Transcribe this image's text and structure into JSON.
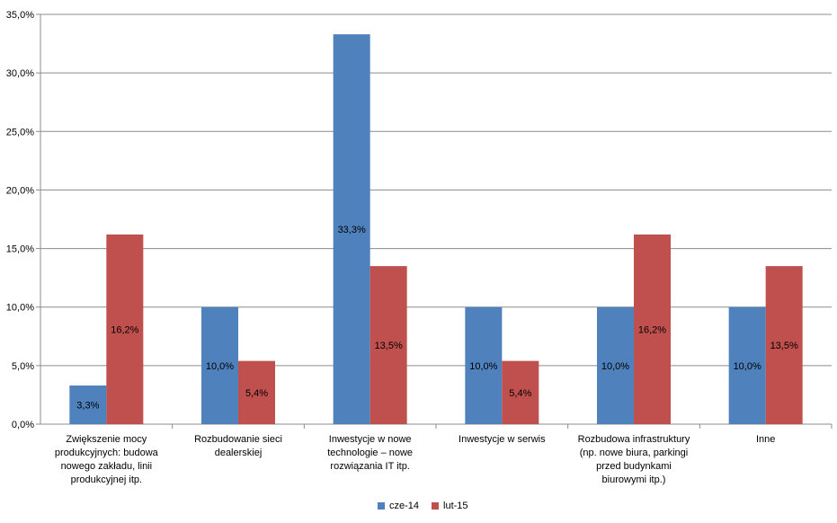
{
  "chart_data": {
    "type": "bar",
    "categories": [
      "Zwiększenie mocy\nprodukcyjnych: budowa\nnowego zakładu, linii\nprodukcyjnej itp.",
      "Rozbudowanie sieci\ndealerskiej",
      "Inwestycje w nowe\ntechnologie – nowe\nrozwiązania IT itp.",
      "Inwestycje w serwis",
      "Rozbudowa infrastruktury\n(np. nowe biura, parkingi\nprzed budynkami\nbiurowymi itp.)",
      "Inne"
    ],
    "series": [
      {
        "name": "cze-14",
        "color": "#4F81BD",
        "values": [
          3.3,
          10.0,
          33.3,
          10.0,
          10.0,
          10.0
        ],
        "labels": [
          "3,3%",
          "10,0%",
          "33,3%",
          "10,0%",
          "10,0%",
          "10,0%"
        ]
      },
      {
        "name": "lut-15",
        "color": "#C0504D",
        "values": [
          16.2,
          5.4,
          13.5,
          5.4,
          16.2,
          13.5
        ],
        "labels": [
          "16,2%",
          "5,4%",
          "13,5%",
          "5,4%",
          "16,2%",
          "13,5%"
        ]
      }
    ],
    "yticks": [
      "0,0%",
      "5,0%",
      "10,0%",
      "15,0%",
      "20,0%",
      "25,0%",
      "30,0%",
      "35,0%"
    ],
    "ylim": [
      0,
      35
    ],
    "grid": true,
    "legend_position": "bottom"
  }
}
